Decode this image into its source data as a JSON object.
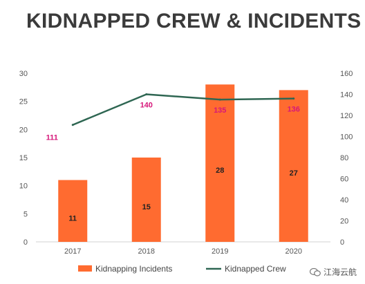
{
  "chart_data": {
    "type": "bar",
    "title": "KIDNAPPED CREW & INCIDENTS",
    "categories": [
      "2017",
      "2018",
      "2019",
      "2020"
    ],
    "series": [
      {
        "name": "Kidnapping Incidents",
        "type": "bar",
        "axis": "left",
        "values": [
          11,
          15,
          28,
          27
        ],
        "labels": [
          "11",
          "15",
          "28",
          "27"
        ]
      },
      {
        "name": "Kidnapped Crew",
        "type": "line",
        "axis": "right",
        "values": [
          111,
          140,
          135,
          136
        ],
        "labels": [
          "111",
          "140",
          "135",
          "136"
        ]
      }
    ],
    "y_left": {
      "ticks": [
        "0",
        "5",
        "10",
        "15",
        "20",
        "25",
        "30"
      ],
      "lim": [
        0,
        30
      ]
    },
    "y_right": {
      "ticks": [
        "0",
        "20",
        "40",
        "60",
        "80",
        "100",
        "120",
        "140",
        "160"
      ],
      "lim": [
        0,
        160
      ]
    },
    "grid": false,
    "legend_position": "bottom",
    "colors": {
      "bar": "#ff6b30",
      "line": "#2e6652",
      "line_label": "#d6177a",
      "bar_label": "#222222"
    }
  },
  "watermark": {
    "text": "江海云航",
    "icon": "wechat-icon"
  }
}
